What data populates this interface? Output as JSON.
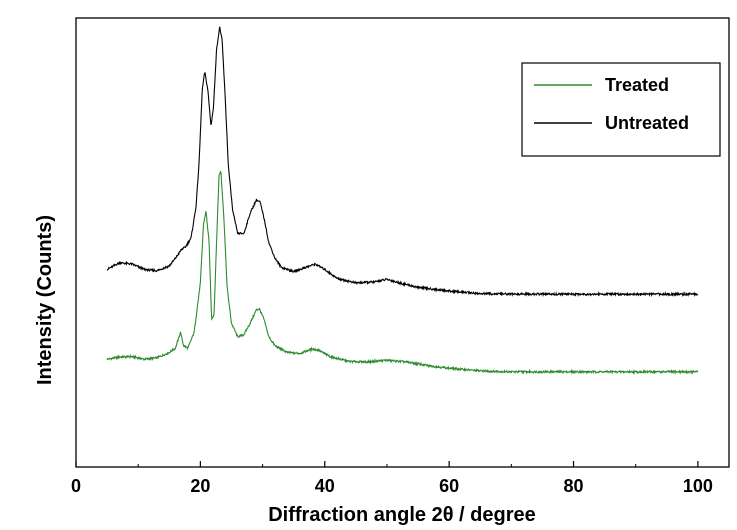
{
  "chart_data": {
    "type": "line",
    "title": "",
    "xlabel": "Diffraction angle 2θ / degree",
    "ylabel": "Intensity (Counts)",
    "xlim": [
      0,
      105
    ],
    "ylim": [
      0,
      100
    ],
    "x_ticks": [
      "0",
      "20",
      "40",
      "60",
      "80",
      "100"
    ],
    "y_ticks_shown": false,
    "grid": false,
    "legend_position": "top-right",
    "series": [
      {
        "name": "Treated",
        "color": "#2e8b2e",
        "points": [
          [
            5,
            24
          ],
          [
            7,
            24.5
          ],
          [
            9,
            24.6
          ],
          [
            11,
            24
          ],
          [
            13,
            24.3
          ],
          [
            15,
            25.5
          ],
          [
            16,
            26.5
          ],
          [
            16.8,
            30
          ],
          [
            17.3,
            27
          ],
          [
            18,
            26.5
          ],
          [
            19,
            30
          ],
          [
            20,
            41
          ],
          [
            20.5,
            54
          ],
          [
            20.9,
            57
          ],
          [
            21.4,
            50
          ],
          [
            21.8,
            33
          ],
          [
            22.2,
            34
          ],
          [
            22.6,
            50
          ],
          [
            23,
            65
          ],
          [
            23.3,
            66
          ],
          [
            23.8,
            55
          ],
          [
            24.3,
            40
          ],
          [
            25,
            32
          ],
          [
            26,
            29
          ],
          [
            27,
            29.5
          ],
          [
            28,
            32
          ],
          [
            29,
            35
          ],
          [
            29.5,
            35.2
          ],
          [
            30.2,
            33
          ],
          [
            31,
            29
          ],
          [
            32,
            27
          ],
          [
            34,
            25.5
          ],
          [
            36,
            25.3
          ],
          [
            38,
            26.3
          ],
          [
            39,
            26
          ],
          [
            41,
            24.5
          ],
          [
            44,
            23.5
          ],
          [
            47,
            23.4
          ],
          [
            50,
            23.8
          ],
          [
            53,
            23.4
          ],
          [
            57,
            22.5
          ],
          [
            60,
            22
          ],
          [
            65,
            21.4
          ],
          [
            70,
            21.2
          ],
          [
            80,
            21.2
          ],
          [
            90,
            21.2
          ],
          [
            100,
            21.2
          ]
        ]
      },
      {
        "name": "Untreated",
        "color": "#000000",
        "points": [
          [
            5,
            44
          ],
          [
            7,
            45.5
          ],
          [
            9,
            45.2
          ],
          [
            11,
            44
          ],
          [
            13,
            43.7
          ],
          [
            15,
            44.8
          ],
          [
            16,
            46.5
          ],
          [
            17,
            48.5
          ],
          [
            17.6,
            49
          ],
          [
            18.5,
            51
          ],
          [
            19.3,
            58
          ],
          [
            19.8,
            68
          ],
          [
            20.3,
            84
          ],
          [
            20.7,
            88
          ],
          [
            21.2,
            84
          ],
          [
            21.7,
            76
          ],
          [
            22.1,
            80
          ],
          [
            22.6,
            93
          ],
          [
            23.1,
            98
          ],
          [
            23.5,
            95
          ],
          [
            24,
            82
          ],
          [
            24.5,
            67
          ],
          [
            25.2,
            57
          ],
          [
            26,
            52
          ],
          [
            27,
            52
          ],
          [
            28,
            56.5
          ],
          [
            29,
            59.5
          ],
          [
            29.6,
            59
          ],
          [
            30.3,
            55
          ],
          [
            31,
            50
          ],
          [
            32,
            46.5
          ],
          [
            33,
            44.5
          ],
          [
            35,
            43.5
          ],
          [
            37,
            44.5
          ],
          [
            38.5,
            45.2
          ],
          [
            40,
            44
          ],
          [
            42,
            42
          ],
          [
            45,
            41
          ],
          [
            48,
            41.2
          ],
          [
            50,
            41.8
          ],
          [
            52,
            41
          ],
          [
            55,
            40
          ],
          [
            60,
            39.2
          ],
          [
            65,
            38.6
          ],
          [
            70,
            38.5
          ],
          [
            80,
            38.5
          ],
          [
            90,
            38.5
          ],
          [
            100,
            38.5
          ]
        ]
      }
    ]
  }
}
